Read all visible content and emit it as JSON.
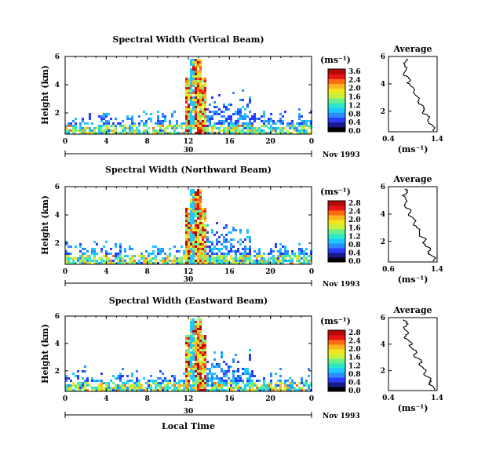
{
  "chart_data": [
    {
      "type": "heatmap",
      "title": "Spectral Width (Vertical Beam)",
      "ylabel": "Height (km)",
      "x_ticks": [
        "0",
        "4",
        "8",
        "12",
        "16",
        "20",
        "0"
      ],
      "y_ticks": [
        "2",
        "4",
        "6"
      ],
      "xlim": [
        0,
        24
      ],
      "ylim": [
        0.5,
        6
      ],
      "date_tick": "30",
      "date_label": "Nov 1993",
      "colorbar": {
        "unit": "(ms⁻¹)",
        "ticks": [
          "3.6",
          "2.4",
          "2.0",
          "1.6",
          "1.2",
          "0.8",
          "0.4",
          "0.0"
        ]
      },
      "profile": {
        "title": "Average",
        "xlabel": "(ms⁻¹)",
        "x_ticks": [
          "0.4",
          "1.4"
        ],
        "y_ticks": [
          "2",
          "4",
          "6"
        ],
        "xlim": [
          0.4,
          1.4
        ],
        "ylim": [
          0.5,
          6
        ]
      }
    },
    {
      "type": "heatmap",
      "title": "Spectral Width (Northward Beam)",
      "ylabel": "Height (km)",
      "x_ticks": [
        "0",
        "4",
        "8",
        "12",
        "16",
        "20",
        "0"
      ],
      "y_ticks": [
        "2",
        "4",
        "6"
      ],
      "xlim": [
        0,
        24
      ],
      "ylim": [
        0.5,
        6
      ],
      "date_tick": "30",
      "date_label": "Nov 1993",
      "colorbar": {
        "unit": "(ms⁻¹)",
        "ticks": [
          "2.8",
          "2.4",
          "2.0",
          "1.6",
          "1.2",
          "0.8",
          "0.4",
          "0.0"
        ]
      },
      "profile": {
        "title": "Average",
        "xlabel": "(ms⁻¹)",
        "x_ticks": [
          "0.6",
          "1.4"
        ],
        "y_ticks": [
          "2",
          "4",
          "6"
        ],
        "xlim": [
          0.6,
          1.4
        ],
        "ylim": [
          0.5,
          6
        ]
      }
    },
    {
      "type": "heatmap",
      "title": "Spectral Width (Eastward Beam)",
      "ylabel": "Height (km)",
      "x_ticks": [
        "0",
        "4",
        "8",
        "12",
        "16",
        "20",
        "0"
      ],
      "y_ticks": [
        "2",
        "4",
        "6"
      ],
      "xlim": [
        0,
        24
      ],
      "ylim": [
        0.5,
        6
      ],
      "date_tick": "30",
      "date_label": "Nov 1993",
      "xlabel": "Local Time",
      "colorbar": {
        "unit": "(ms⁻¹)",
        "ticks": [
          "2.8",
          "2.4",
          "2.0",
          "1.6",
          "1.2",
          "0.8",
          "0.4",
          "0.0"
        ]
      },
      "profile": {
        "title": "Average",
        "xlabel": "(ms⁻¹)",
        "x_ticks": [
          "0.4",
          "1.4"
        ],
        "y_ticks": [
          "2",
          "4",
          "6"
        ],
        "xlim": [
          0.4,
          1.4
        ],
        "ylim": [
          0.5,
          6
        ]
      }
    }
  ],
  "colors": {
    "scale": [
      "#000000",
      "#1a1a8a",
      "#2a3cff",
      "#2a8cff",
      "#1ec8ff",
      "#2ee6c8",
      "#6cf08c",
      "#c8f03c",
      "#f0e61e",
      "#ffb41e",
      "#ff6a14",
      "#e61414",
      "#b40a0a"
    ]
  }
}
